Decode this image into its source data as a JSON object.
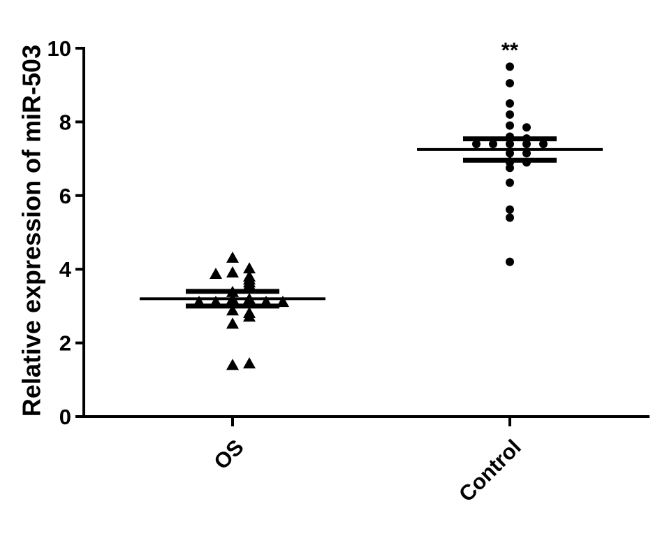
{
  "chart_data": {
    "type": "strip",
    "y_label": "Relative expression of miR-503",
    "categories": [
      "OS",
      "Control"
    ],
    "groups": [
      {
        "marker": "triangle",
        "color": "#000000",
        "values": [
          4.31,
          3.91,
          3.8,
          4.02,
          3.87,
          3.72,
          3.64,
          3.57,
          3.38,
          3.19,
          3.19,
          3.11,
          3.11,
          3.11,
          3.11,
          2.88,
          2.81,
          2.71,
          2.52,
          1.4,
          1.44
        ],
        "mean": 3.2,
        "error": 0.2
      },
      {
        "marker": "circle",
        "color": "#000000",
        "values": [
          9.5,
          9.05,
          8.5,
          8.2,
          7.9,
          7.85,
          7.6,
          7.55,
          7.4,
          7.4,
          7.4,
          7.4,
          7.4,
          7.15,
          7.15,
          6.9,
          6.9,
          6.75,
          6.35,
          5.62,
          5.4,
          4.2
        ],
        "mean": 7.25,
        "error": 0.29
      }
    ],
    "annotations": [
      {
        "text": "**",
        "category_index": 1
      }
    ],
    "ylim": [
      0,
      10
    ],
    "yticks": [
      0,
      2,
      4,
      6,
      8,
      10
    ]
  }
}
